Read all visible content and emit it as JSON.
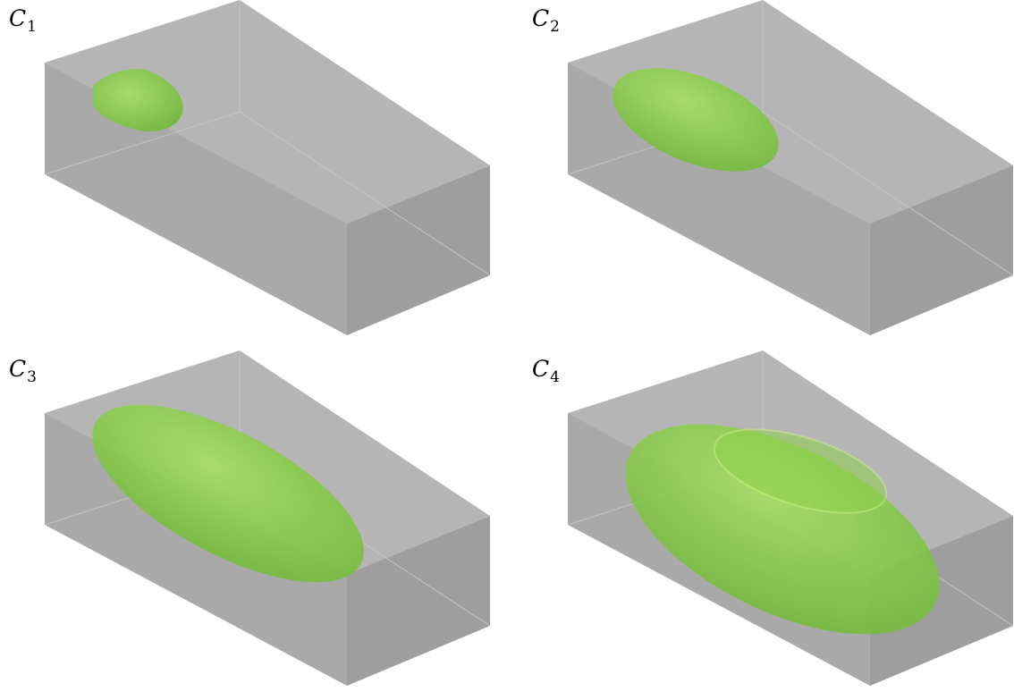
{
  "panels": [
    {
      "label": "C",
      "subscript": "1"
    },
    {
      "label": "C",
      "subscript": "2"
    },
    {
      "label": "C",
      "subscript": "3"
    },
    {
      "label": "C",
      "subscript": "4"
    }
  ],
  "colors": {
    "box_face": "#9a9a9a",
    "box_edge": "#8a8a8a",
    "blob_fill": "#7fc241",
    "blob_highlight": "#a8e05e"
  },
  "icons": [
    "transparent-box-icon",
    "green-ellipsoid-icon"
  ]
}
